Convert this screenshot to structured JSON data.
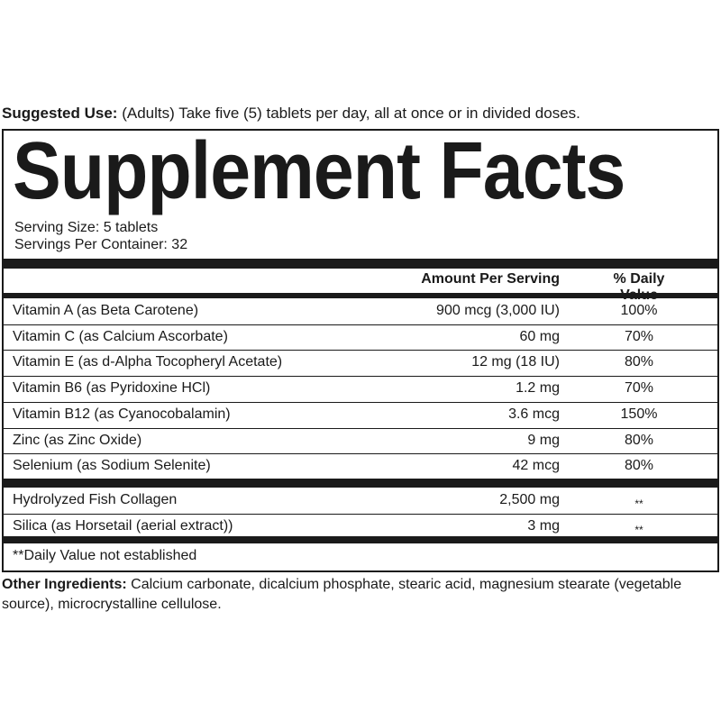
{
  "suggested_use": {
    "label": "Suggested Use:",
    "text": " (Adults) Take five (5) tablets per day, all at once or in divided doses."
  },
  "title": "Supplement Facts",
  "serving_size": "Serving Size: 5 tablets",
  "servings_per_container": "Servings Per Container: 32",
  "columns": {
    "amount": "Amount Per Serving",
    "daily_value": "% Daily Value"
  },
  "vitamins": [
    {
      "name": "Vitamin A (as Beta Carotene)",
      "amount": "900 mcg (3,000 IU)",
      "dv": "100%"
    },
    {
      "name": "Vitamin C (as Calcium Ascorbate)",
      "amount": "60 mg",
      "dv": "70%"
    },
    {
      "name": "Vitamin E (as d-Alpha Tocopheryl Acetate)",
      "amount": "12 mg (18 IU)",
      "dv": "80%"
    },
    {
      "name": "Vitamin B6 (as Pyridoxine HCl)",
      "amount": "1.2 mg",
      "dv": "70%"
    },
    {
      "name": "Vitamin B12 (as Cyanocobalamin)",
      "amount": "3.6 mcg",
      "dv": "150%"
    },
    {
      "name": "Zinc (as Zinc Oxide)",
      "amount": "9 mg",
      "dv": "80%"
    },
    {
      "name": "Selenium (as Sodium Selenite)",
      "amount": "42 mcg",
      "dv": "80%"
    }
  ],
  "others": [
    {
      "name": "Hydrolyzed Fish Collagen",
      "amount": "2,500 mg",
      "dv": "**"
    },
    {
      "name": "Silica (as Horsetail (aerial extract))",
      "amount": "3 mg",
      "dv": "**"
    }
  ],
  "footnote": "**Daily Value not established",
  "other_ingredients": {
    "label": "Other Ingredients:",
    "text": " Calcium carbonate, dicalcium phosphate, stearic acid, magnesium stearate (vegetable source), microcrystalline cellulose."
  }
}
